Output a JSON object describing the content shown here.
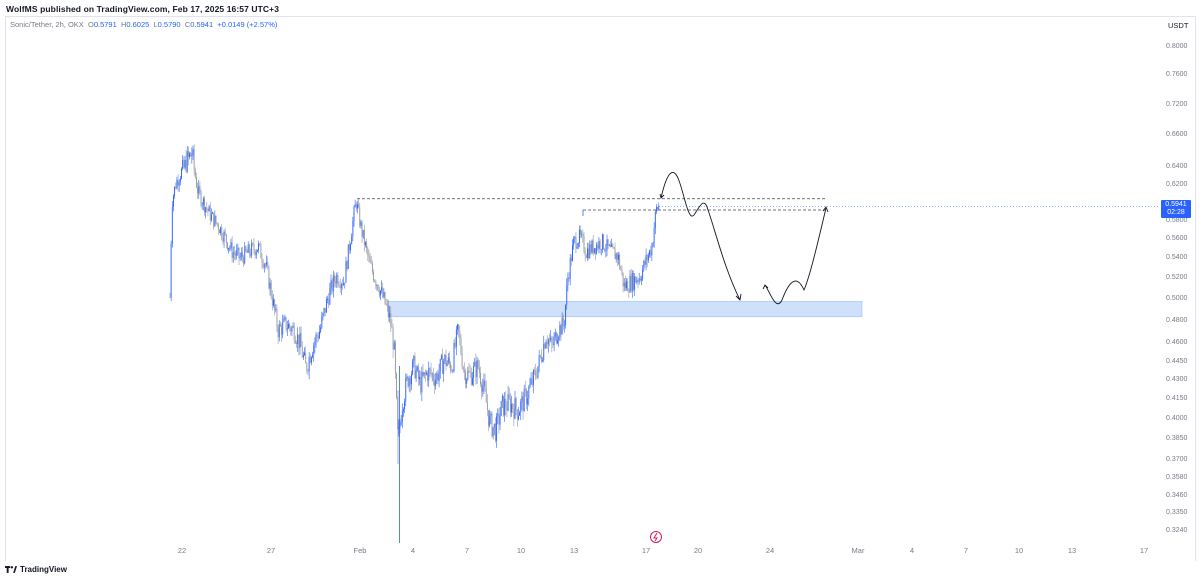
{
  "header": {
    "published_text": "WolfMS published on TradingView.com, Feb 17, 2025 16:57 UTC+3"
  },
  "legend": {
    "symbol": "Sonic/Tether, 2h, OKX",
    "open_label": "O",
    "open": "0.5791",
    "high_label": "H",
    "high": "0.6025",
    "low_label": "L",
    "low": "0.5790",
    "close_label": "C",
    "close": "0.5941",
    "change": "+0.0149 (+2.57%)"
  },
  "price_scale": {
    "currency": "USDT",
    "ticks": [
      "0.8000",
      "0.7600",
      "0.7200",
      "0.6600",
      "0.6400",
      "0.6200",
      "0.5800",
      "0.5600",
      "0.5400",
      "0.5200",
      "0.5000",
      "0.4800",
      "0.4600",
      "0.4450",
      "0.4300",
      "0.4150",
      "0.4000",
      "0.3850",
      "0.3700",
      "0.3580",
      "0.3460",
      "0.3350",
      "0.3240"
    ],
    "current_price": "0.5941",
    "countdown": "02:28"
  },
  "time_axis": {
    "labels": [
      "22",
      "27",
      "Feb",
      "4",
      "7",
      "10",
      "13",
      "17",
      "20",
      "24",
      "Mar",
      "4",
      "7",
      "10",
      "13",
      "17"
    ]
  },
  "colors": {
    "up": "#2962ff",
    "down": "#9598a1",
    "zone": "#cfe0fa",
    "zone_border": "#9ec0f5",
    "line": "#131722",
    "accent": "#2962ff"
  },
  "icons": {
    "logo": "tradingview-logo-icon",
    "event": "flash-event-icon"
  },
  "footer": {
    "brand": "TradingView"
  },
  "chart_data": {
    "type": "candlestick",
    "title": "Sonic/Tether, 2h, OKX",
    "unit": "USDT",
    "ylim": [
      0.32,
      0.82
    ],
    "grid": false,
    "series": [
      {
        "name": "Sonic/Tether",
        "x": [
          "Jan 21",
          "Jan 22",
          "Jan 24",
          "Jan 26",
          "Jan 28",
          "Jan 30",
          "Feb 1",
          "Feb 3",
          "Feb 4",
          "Feb 6",
          "Feb 8",
          "Feb 10",
          "Feb 12",
          "Feb 13",
          "Feb 15",
          "Feb 16",
          "Feb 17"
        ],
        "close": [
          0.6,
          0.64,
          0.57,
          0.55,
          0.46,
          0.52,
          0.61,
          0.5,
          0.44,
          0.45,
          0.39,
          0.41,
          0.47,
          0.55,
          0.55,
          0.51,
          0.5941
        ]
      }
    ],
    "annotations": {
      "resistance_levels": [
        0.6025,
        0.59
      ],
      "demand_zone": [
        0.482,
        0.496
      ],
      "projected_path": "up, down to demand zone, then back up"
    }
  }
}
